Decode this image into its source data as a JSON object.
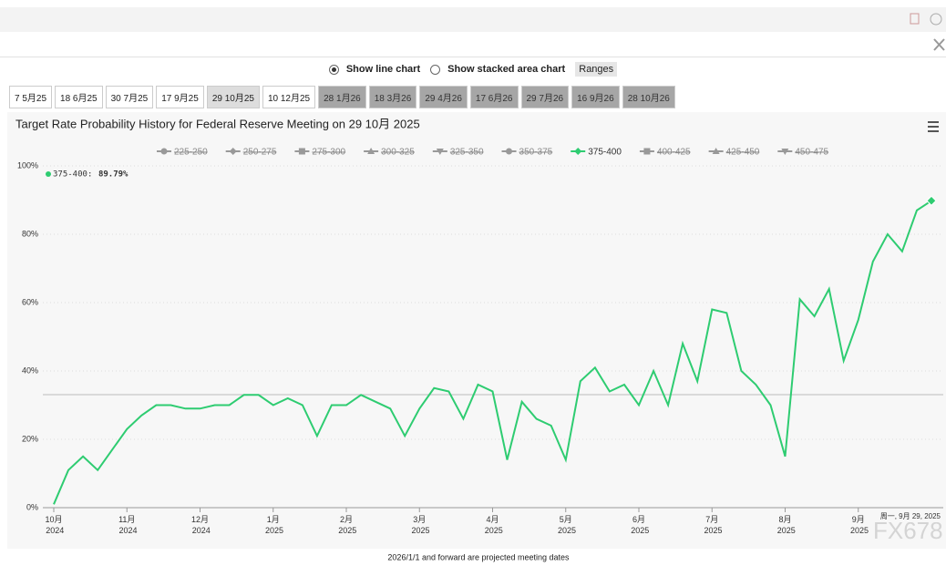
{
  "toolbar": {
    "line_option": "Show line chart",
    "area_option": "Show stacked area chart",
    "ranges": "Ranges"
  },
  "tabs": [
    {
      "label": "7 5月25",
      "state": "normal"
    },
    {
      "label": "18 6月25",
      "state": "normal"
    },
    {
      "label": "30 7月25",
      "state": "normal"
    },
    {
      "label": "17 9月25",
      "state": "normal"
    },
    {
      "label": "29 10月25",
      "state": "active"
    },
    {
      "label": "10 12月25",
      "state": "normal"
    },
    {
      "label": "28 1月26",
      "state": "projected"
    },
    {
      "label": "18 3月26",
      "state": "projected"
    },
    {
      "label": "29 4月26",
      "state": "projected"
    },
    {
      "label": "17 6月26",
      "state": "projected"
    },
    {
      "label": "29 7月26",
      "state": "projected"
    },
    {
      "label": "16 9月26",
      "state": "projected"
    },
    {
      "label": "28 10月26",
      "state": "projected"
    }
  ],
  "chart_data": {
    "type": "line",
    "title": "Target Rate Probability History for Federal Reserve Meeting on 29 10月 2025",
    "categories": [
      "10月 2024",
      null,
      null,
      null,
      null,
      "11月 2024",
      null,
      null,
      null,
      null,
      "12月 2024",
      null,
      null,
      null,
      null,
      "1月 2025",
      null,
      null,
      null,
      null,
      "2月 2025",
      null,
      null,
      null,
      null,
      "3月 2025",
      null,
      null,
      null,
      null,
      "4月 2025",
      null,
      null,
      null,
      null,
      "5月 2025",
      null,
      null,
      null,
      null,
      "6月 2025",
      null,
      null,
      null,
      null,
      "7月 2025",
      null,
      null,
      null,
      null,
      "8月 2025",
      null,
      null,
      null,
      null,
      "9月 2025",
      null,
      null,
      null,
      null,
      null
    ],
    "series": [
      {
        "name": "225-250",
        "symbol": "circle",
        "visible": false
      },
      {
        "name": "250-275",
        "symbol": "diamond",
        "visible": false
      },
      {
        "name": "275-300",
        "symbol": "square",
        "visible": false
      },
      {
        "name": "300-325",
        "symbol": "triangle",
        "visible": false
      },
      {
        "name": "325-350",
        "symbol": "triangle-down",
        "visible": false
      },
      {
        "name": "350-375",
        "symbol": "circle",
        "visible": false
      },
      {
        "name": "375-400",
        "symbol": "diamond",
        "visible": true,
        "color": "#2ecc71",
        "values": [
          1,
          11,
          15,
          11,
          17,
          23,
          27,
          30,
          30,
          29,
          29,
          30,
          30,
          33,
          33,
          30,
          32,
          30,
          21,
          30,
          30,
          33,
          31,
          29,
          21,
          29,
          35,
          34,
          26,
          36,
          34,
          14,
          31,
          26,
          24,
          14,
          37,
          41,
          34,
          36,
          30,
          40,
          30,
          48,
          37,
          58,
          57,
          40,
          36,
          30,
          15,
          61,
          56,
          64,
          43,
          55,
          72,
          80,
          75,
          87,
          89.79
        ],
        "value_labels": [
          null,
          null,
          null,
          null,
          null,
          null,
          null,
          null,
          null,
          null,
          null,
          null,
          null,
          null,
          null,
          null,
          null,
          null,
          null,
          null,
          null,
          null,
          null,
          null,
          null,
          null,
          null,
          null,
          null,
          null,
          null,
          null,
          null,
          null,
          null,
          null,
          null,
          null,
          null,
          null,
          null,
          null,
          null,
          null,
          null,
          null,
          null,
          null,
          null,
          null,
          null,
          null,
          null,
          null,
          null,
          null,
          null,
          null,
          null,
          null,
          "89.79%"
        ]
      },
      {
        "name": "400-425",
        "symbol": "square",
        "visible": false
      },
      {
        "name": "425-450",
        "symbol": "triangle",
        "visible": false
      },
      {
        "name": "450-475",
        "symbol": "triangle-down",
        "visible": false
      }
    ],
    "ylim": [
      0,
      100
    ],
    "yticks": [
      {
        "value": 0,
        "label": "0%"
      },
      {
        "value": 20,
        "label": "20%"
      },
      {
        "value": 40,
        "label": "40%"
      },
      {
        "value": 60,
        "label": "60%"
      },
      {
        "value": 80,
        "label": "80%"
      },
      {
        "value": 100,
        "label": "100%"
      }
    ],
    "grid": true,
    "crosshair_label": "周一, 9月 29, 2025",
    "footnote": "2026/1/1 and forward are projected meeting dates"
  },
  "watermark": "FX678"
}
